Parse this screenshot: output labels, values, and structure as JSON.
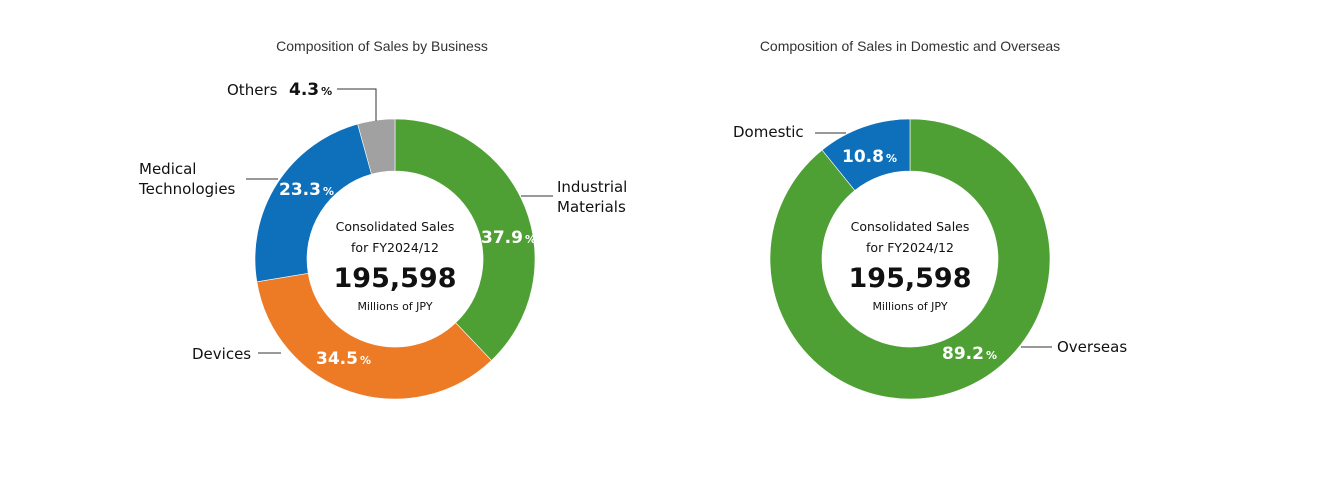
{
  "chart_data": [
    {
      "type": "pie",
      "title": "Composition of Sales by Business",
      "center": {
        "line1": "Consolidated Sales",
        "line2": "for FY2024/12",
        "total": "195,598",
        "unit": "Millions of JPY"
      },
      "slices": [
        {
          "key": "industrial",
          "name_lines": [
            "Industrial",
            "Materials"
          ],
          "value": 37.9,
          "label": "37.9",
          "color": "#4fa034"
        },
        {
          "key": "devices",
          "name_lines": [
            "Devices"
          ],
          "value": 34.5,
          "label": "34.5",
          "color": "#ed7a25"
        },
        {
          "key": "medical",
          "name_lines": [
            "Medical",
            "Technologies"
          ],
          "value": 23.3,
          "label": "23.3",
          "color": "#0e6fba"
        },
        {
          "key": "others",
          "name_lines": [
            "Others"
          ],
          "value": 4.3,
          "label": "4.3",
          "color": "#a1a1a1"
        }
      ],
      "percent_symbol": "%"
    },
    {
      "type": "pie",
      "title": "Composition of Sales in Domestic and Overseas",
      "center": {
        "line1": "Consolidated Sales",
        "line2": "for FY2024/12",
        "total": "195,598",
        "unit": "Millions of JPY"
      },
      "slices": [
        {
          "key": "overseas",
          "name_lines": [
            "Overseas"
          ],
          "value": 89.2,
          "label": "89.2",
          "color": "#4fa034"
        },
        {
          "key": "domestic",
          "name_lines": [
            "Domestic"
          ],
          "value": 10.8,
          "label": "10.8",
          "color": "#0e6fba"
        }
      ],
      "percent_symbol": "%"
    }
  ]
}
